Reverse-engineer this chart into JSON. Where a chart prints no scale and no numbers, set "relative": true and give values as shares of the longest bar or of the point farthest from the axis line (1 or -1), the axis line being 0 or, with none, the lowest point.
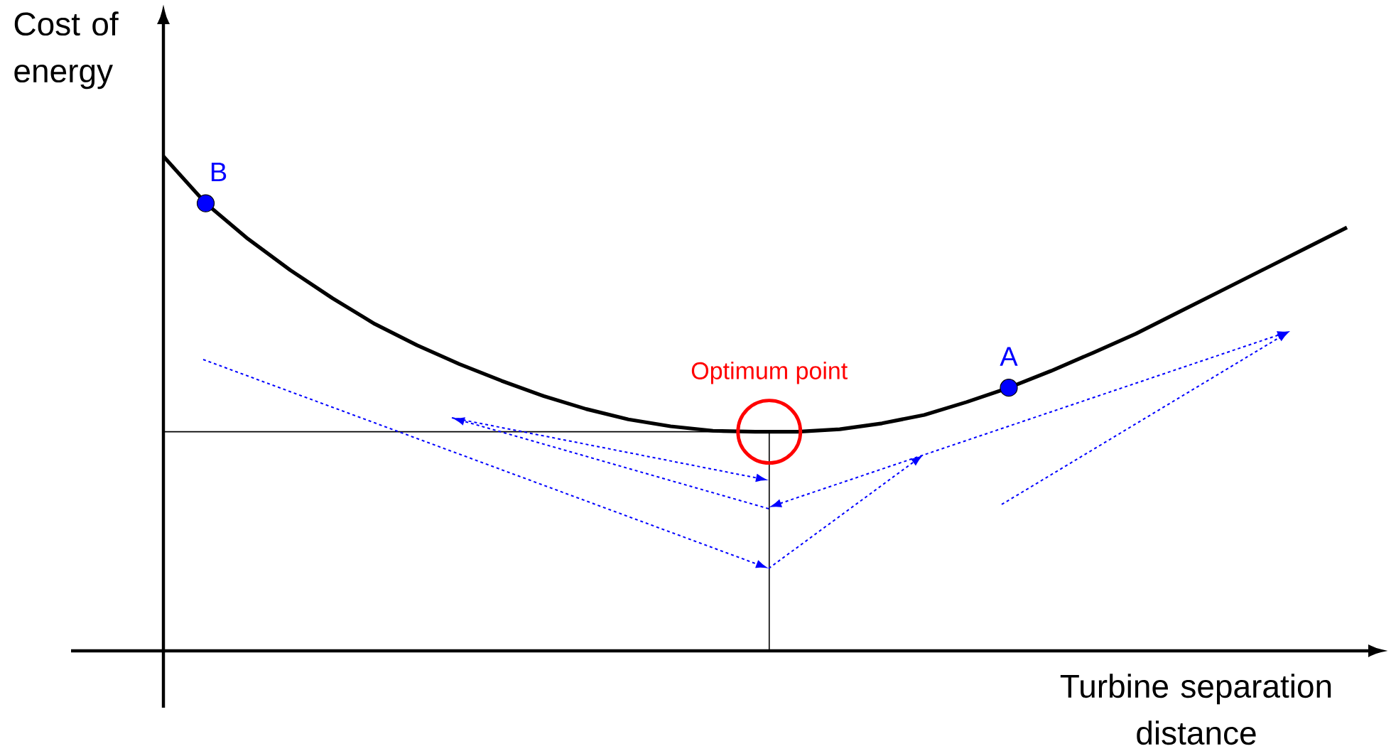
{
  "chart_data": {
    "type": "line",
    "relative": true,
    "xlabel": "Turbine separation distance",
    "ylabel": "Cost of energy",
    "categories": [
      null,
      null,
      null,
      null,
      null,
      null,
      null,
      null,
      null,
      null,
      null,
      null,
      null,
      null,
      null,
      null,
      null,
      null,
      null,
      null,
      null,
      null,
      null,
      null,
      null,
      null,
      null,
      null,
      null
    ],
    "series": [
      {
        "color": "#000000",
        "values": [
          1.0,
          0.905,
          0.833,
          0.77,
          0.713,
          0.661,
          0.618,
          0.58,
          0.546,
          0.515,
          0.489,
          0.468,
          0.454,
          0.445,
          0.443,
          0.443,
          0.448,
          0.46,
          0.477,
          0.503,
          0.532,
          0.566,
          0.603,
          0.641,
          0.684,
          0.727,
          0.77,
          0.813,
          0.856
        ]
      }
    ],
    "ref_lines": [
      {
        "axis": "y",
        "value": 0.443,
        "color": "#000000"
      }
    ],
    "annotations": [
      {
        "text": "Optimum point",
        "y": 0.443
      },
      {
        "text": "B",
        "y": 0.905
      },
      {
        "text": "A",
        "y": 0.532
      }
    ]
  }
}
